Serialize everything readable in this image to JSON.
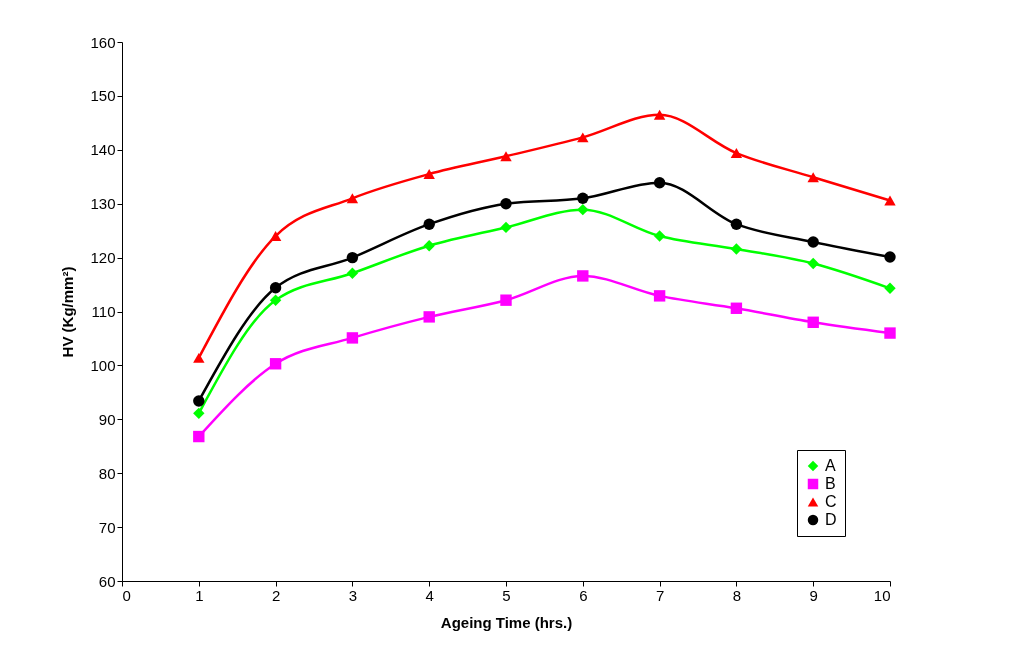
{
  "chart_data": {
    "type": "line",
    "xlabel": "Ageing Time (hrs.)",
    "ylabel": "HV (Kg/mm²)",
    "x": [
      1,
      2,
      3,
      4,
      5,
      6,
      7,
      8,
      9,
      10
    ],
    "xlim": [
      0,
      10
    ],
    "xticks": [
      0,
      1,
      2,
      3,
      4,
      5,
      6,
      7,
      8,
      9,
      10
    ],
    "ylim": [
      60,
      160
    ],
    "yticks": [
      60,
      70,
      80,
      90,
      100,
      110,
      120,
      130,
      140,
      150,
      160
    ],
    "grid": false,
    "legend": "bottom right",
    "line_style": "solid",
    "series": [
      {
        "name": "A",
        "color": "#00ff00",
        "marker": "diamond",
        "values": [
          91.1,
          112.1,
          117.1,
          122.2,
          125.6,
          128.9,
          124.0,
          121.6,
          118.9,
          114.3
        ]
      },
      {
        "name": "B",
        "color": "#ff00ff",
        "marker": "square",
        "values": [
          86.8,
          100.3,
          105.1,
          109.0,
          112.1,
          116.6,
          112.9,
          110.6,
          108.0,
          106.0
        ]
      },
      {
        "name": "C",
        "color": "#ff0000",
        "marker": "triangle",
        "values": [
          101.4,
          124.0,
          131.0,
          135.5,
          138.8,
          142.3,
          146.5,
          139.4,
          134.9,
          130.6
        ]
      },
      {
        "name": "D",
        "color": "#000000",
        "marker": "circle",
        "values": [
          93.4,
          114.4,
          120.0,
          126.2,
          130.0,
          131.0,
          133.9,
          126.2,
          122.9,
          120.1
        ]
      }
    ]
  }
}
